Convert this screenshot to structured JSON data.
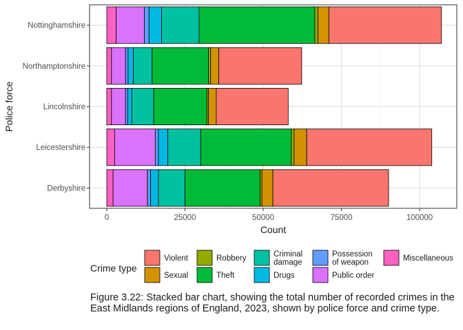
{
  "chart_data": {
    "type": "bar",
    "orientation": "horizontal",
    "stacked": true,
    "xlabel": "Count",
    "ylabel": "Police force",
    "xlim": [
      0,
      112000
    ],
    "xticks": [
      0,
      25000,
      50000,
      75000,
      100000
    ],
    "xtick_labels": [
      "0",
      "25000",
      "50000",
      "75000",
      "100000"
    ],
    "grid": true,
    "legend_position": "bottom",
    "legend_title": "Crime type",
    "categories": [
      "Derbyshire",
      "Leicestershire",
      "Lincolnshire",
      "Northamptonshire",
      "Nottinghamshire"
    ],
    "series": [
      {
        "name": "Miscellaneous",
        "color": "#FF61C3",
        "values": [
          2000,
          2500,
          1500,
          1500,
          3000
        ]
      },
      {
        "name": "Public order",
        "color": "#DB72FB",
        "values": [
          11000,
          13000,
          4500,
          4500,
          9000
        ]
      },
      {
        "name": "Possession of weapon",
        "color": "#619CFF",
        "values": [
          1000,
          1000,
          700,
          800,
          1500
        ]
      },
      {
        "name": "Drugs",
        "color": "#00B9E3",
        "values": [
          2500,
          3000,
          1300,
          1700,
          4000
        ]
      },
      {
        "name": "Criminal damage",
        "color": "#00C19F",
        "values": [
          8500,
          10500,
          7000,
          6000,
          12000
        ]
      },
      {
        "name": "Theft",
        "color": "#00BA38",
        "values": [
          24000,
          29000,
          17000,
          18000,
          37000
        ]
      },
      {
        "name": "Robbery",
        "color": "#93AA00",
        "values": [
          600,
          900,
          500,
          700,
          1000
        ]
      },
      {
        "name": "Sexual",
        "color": "#D39200",
        "values": [
          3500,
          4000,
          2500,
          2600,
          3500
        ]
      },
      {
        "name": "Violent",
        "color": "#F8766D",
        "values": [
          37000,
          40000,
          23000,
          26500,
          36000
        ]
      }
    ],
    "legend_order": [
      "Violent",
      "Sexual",
      "Robbery",
      "Theft",
      "Criminal damage",
      "Drugs",
      "Possession of weapon",
      "Public order",
      "Miscellaneous"
    ],
    "legend_label_lines": {
      "Criminal damage": [
        "Criminal",
        "damage"
      ],
      "Possession of weapon": [
        "Possession",
        "of weapon"
      ]
    }
  },
  "caption": "Figure 3.22: Stacked bar chart, showing the total number of recorded crimes in the East Midlands regions of England, 2023, shown by police force and crime type.",
  "colors": {
    "panel_border": "#333333",
    "grid_major": "#DEDEDE",
    "grid_minor": "#F0F0F0",
    "bar_outline": "#000000"
  }
}
